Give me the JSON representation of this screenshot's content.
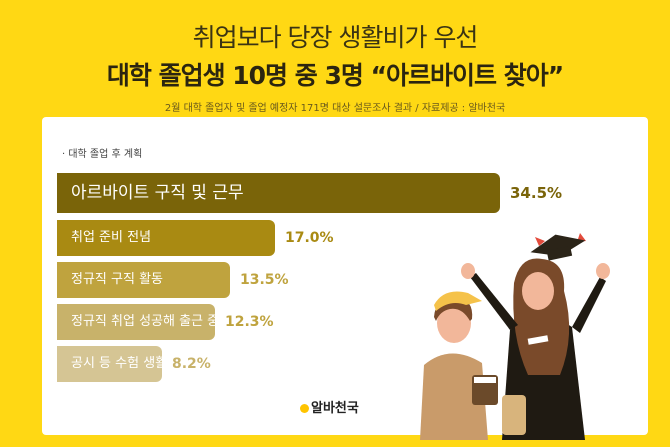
{
  "header": {
    "title_line1": "취업보다 당장 생활비가 우선",
    "title_line2": "대학 졸업생 10명 중 3명 “아르바이트 찾아”",
    "subtitle": "2월 대학 졸업자 및 졸업 예정자 171명 대상 설문조사 결과 / 자료제공 : 알바천국"
  },
  "chart_data": {
    "type": "bar",
    "orientation": "horizontal",
    "label": "· 대학 졸업 후 계획",
    "categories": [
      "아르바이트 구직 및 근무",
      "취업 준비 전념",
      "정규직 구직 활동",
      "정규직 취업 성공해 출근 중(예정)",
      "공시 등 수험 생활"
    ],
    "values": [
      34.5,
      17.0,
      13.5,
      12.3,
      8.2
    ],
    "value_labels": [
      "34.5%",
      "17.0%",
      "13.5%",
      "12.3%",
      "8.2%"
    ],
    "colors": [
      "#7A6409",
      "#A98A12",
      "#BFA33E",
      "#C8B26A",
      "#D5C594"
    ],
    "value_colors": [
      "#7A6409",
      "#A98A12",
      "#BFA33E",
      "#BFA33E",
      "#C8B26A"
    ],
    "grid": false
  },
  "logo": {
    "text": "알바천국"
  },
  "icons": {
    "illustration": "graduates-illustration",
    "logo_mark": "albacheonguk-logo-icon"
  }
}
